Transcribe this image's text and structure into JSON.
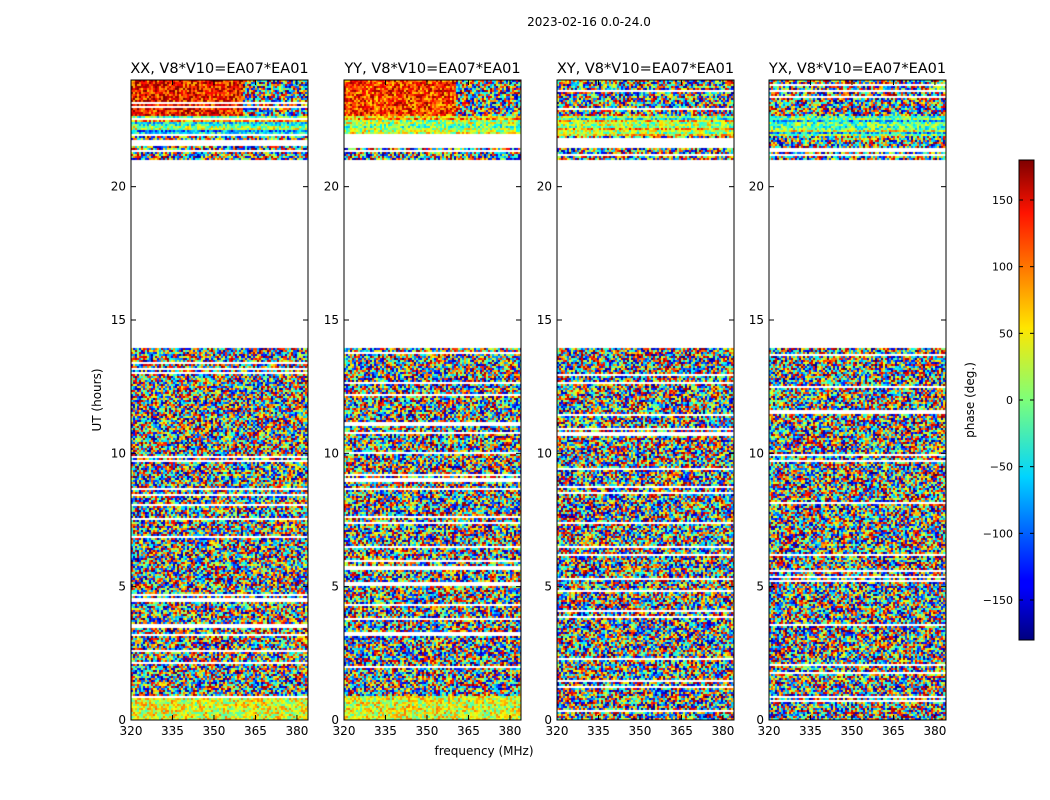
{
  "figure": {
    "suptitle": "2023-02-16 0.0-24.0",
    "xlabel": "frequency (MHz)",
    "ylabel": "UT (hours)",
    "colorbar_label": "phase (deg.)"
  },
  "chart_data": {
    "type": "heatmap",
    "x_ticks": [
      320,
      335,
      350,
      365,
      380
    ],
    "y_ticks": [
      0,
      5,
      10,
      15,
      20
    ],
    "xlim": [
      320,
      384
    ],
    "ylim": [
      0,
      24
    ],
    "colormap": "jet",
    "colorbar": {
      "range": [
        -180,
        180
      ],
      "ticks": [
        -150,
        -100,
        -50,
        0,
        50,
        100,
        150
      ]
    },
    "flagged_ranges_hours": [
      [
        14.0,
        21.0
      ]
    ],
    "panels": [
      {
        "title": "XX, V8*V10=EA07*EA01"
      },
      {
        "title": "YY, V8*V10=EA07*EA01"
      },
      {
        "title": "XY, V8*V10=EA07*EA01"
      },
      {
        "title": "YX, V8*V10=EA07*EA01"
      }
    ]
  }
}
